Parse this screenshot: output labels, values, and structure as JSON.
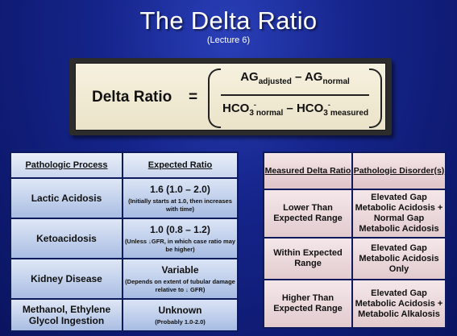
{
  "header": {
    "title": "The Delta Ratio",
    "subtitle": "(Lecture 6)"
  },
  "formula": {
    "label": "Delta Ratio",
    "equals": "=",
    "numerator": {
      "ag": "AG",
      "ag_sub": "adjusted",
      "minus": " – ",
      "ag2": "AG",
      "ag2_sub": "normal"
    },
    "denominator": {
      "hco3": "HCO",
      "sub3": "3",
      "sup": "-",
      "sub_normal": "normal",
      "minus": " – ",
      "hco3b": "HCO",
      "sub3b": "3",
      "supb": "-",
      "sub_measured": "measured"
    }
  },
  "left_table": {
    "headers": [
      "Pathologic Process",
      "Expected Ratio"
    ],
    "rows": [
      {
        "process": "Lactic Acidosis",
        "ratio": "1.6  (1.0 – 2.0)",
        "note": "(Initially starts at 1.0, then increases with time)"
      },
      {
        "process": "Ketoacidosis",
        "ratio": "1.0  (0.8 – 1.2)",
        "note": "(Unless ↓GFR, in which case ratio may be higher)"
      },
      {
        "process": "Kidney Disease",
        "ratio": "Variable",
        "note": "(Depends on extent of tubular damage relative to ↓ GFR)"
      },
      {
        "process": "Methanol, Ethylene Glycol Ingestion",
        "ratio": "Unknown",
        "note": "(Probably 1.0-2.0)"
      }
    ]
  },
  "right_table": {
    "headers": [
      "Measured Delta Ratio",
      "Pathologic Disorder(s)"
    ],
    "rows": [
      {
        "measured": "Lower Than Expected Range",
        "disorder": "Elevated Gap Metabolic Acidosis + Normal Gap Metabolic Acidosis"
      },
      {
        "measured": "Within Expected Range",
        "disorder": "Elevated Gap Metabolic Acidosis Only"
      },
      {
        "measured": "Higher Than Expected Range",
        "disorder": "Elevated Gap Metabolic Acidosis + Metabolic Alkalosis"
      }
    ]
  }
}
